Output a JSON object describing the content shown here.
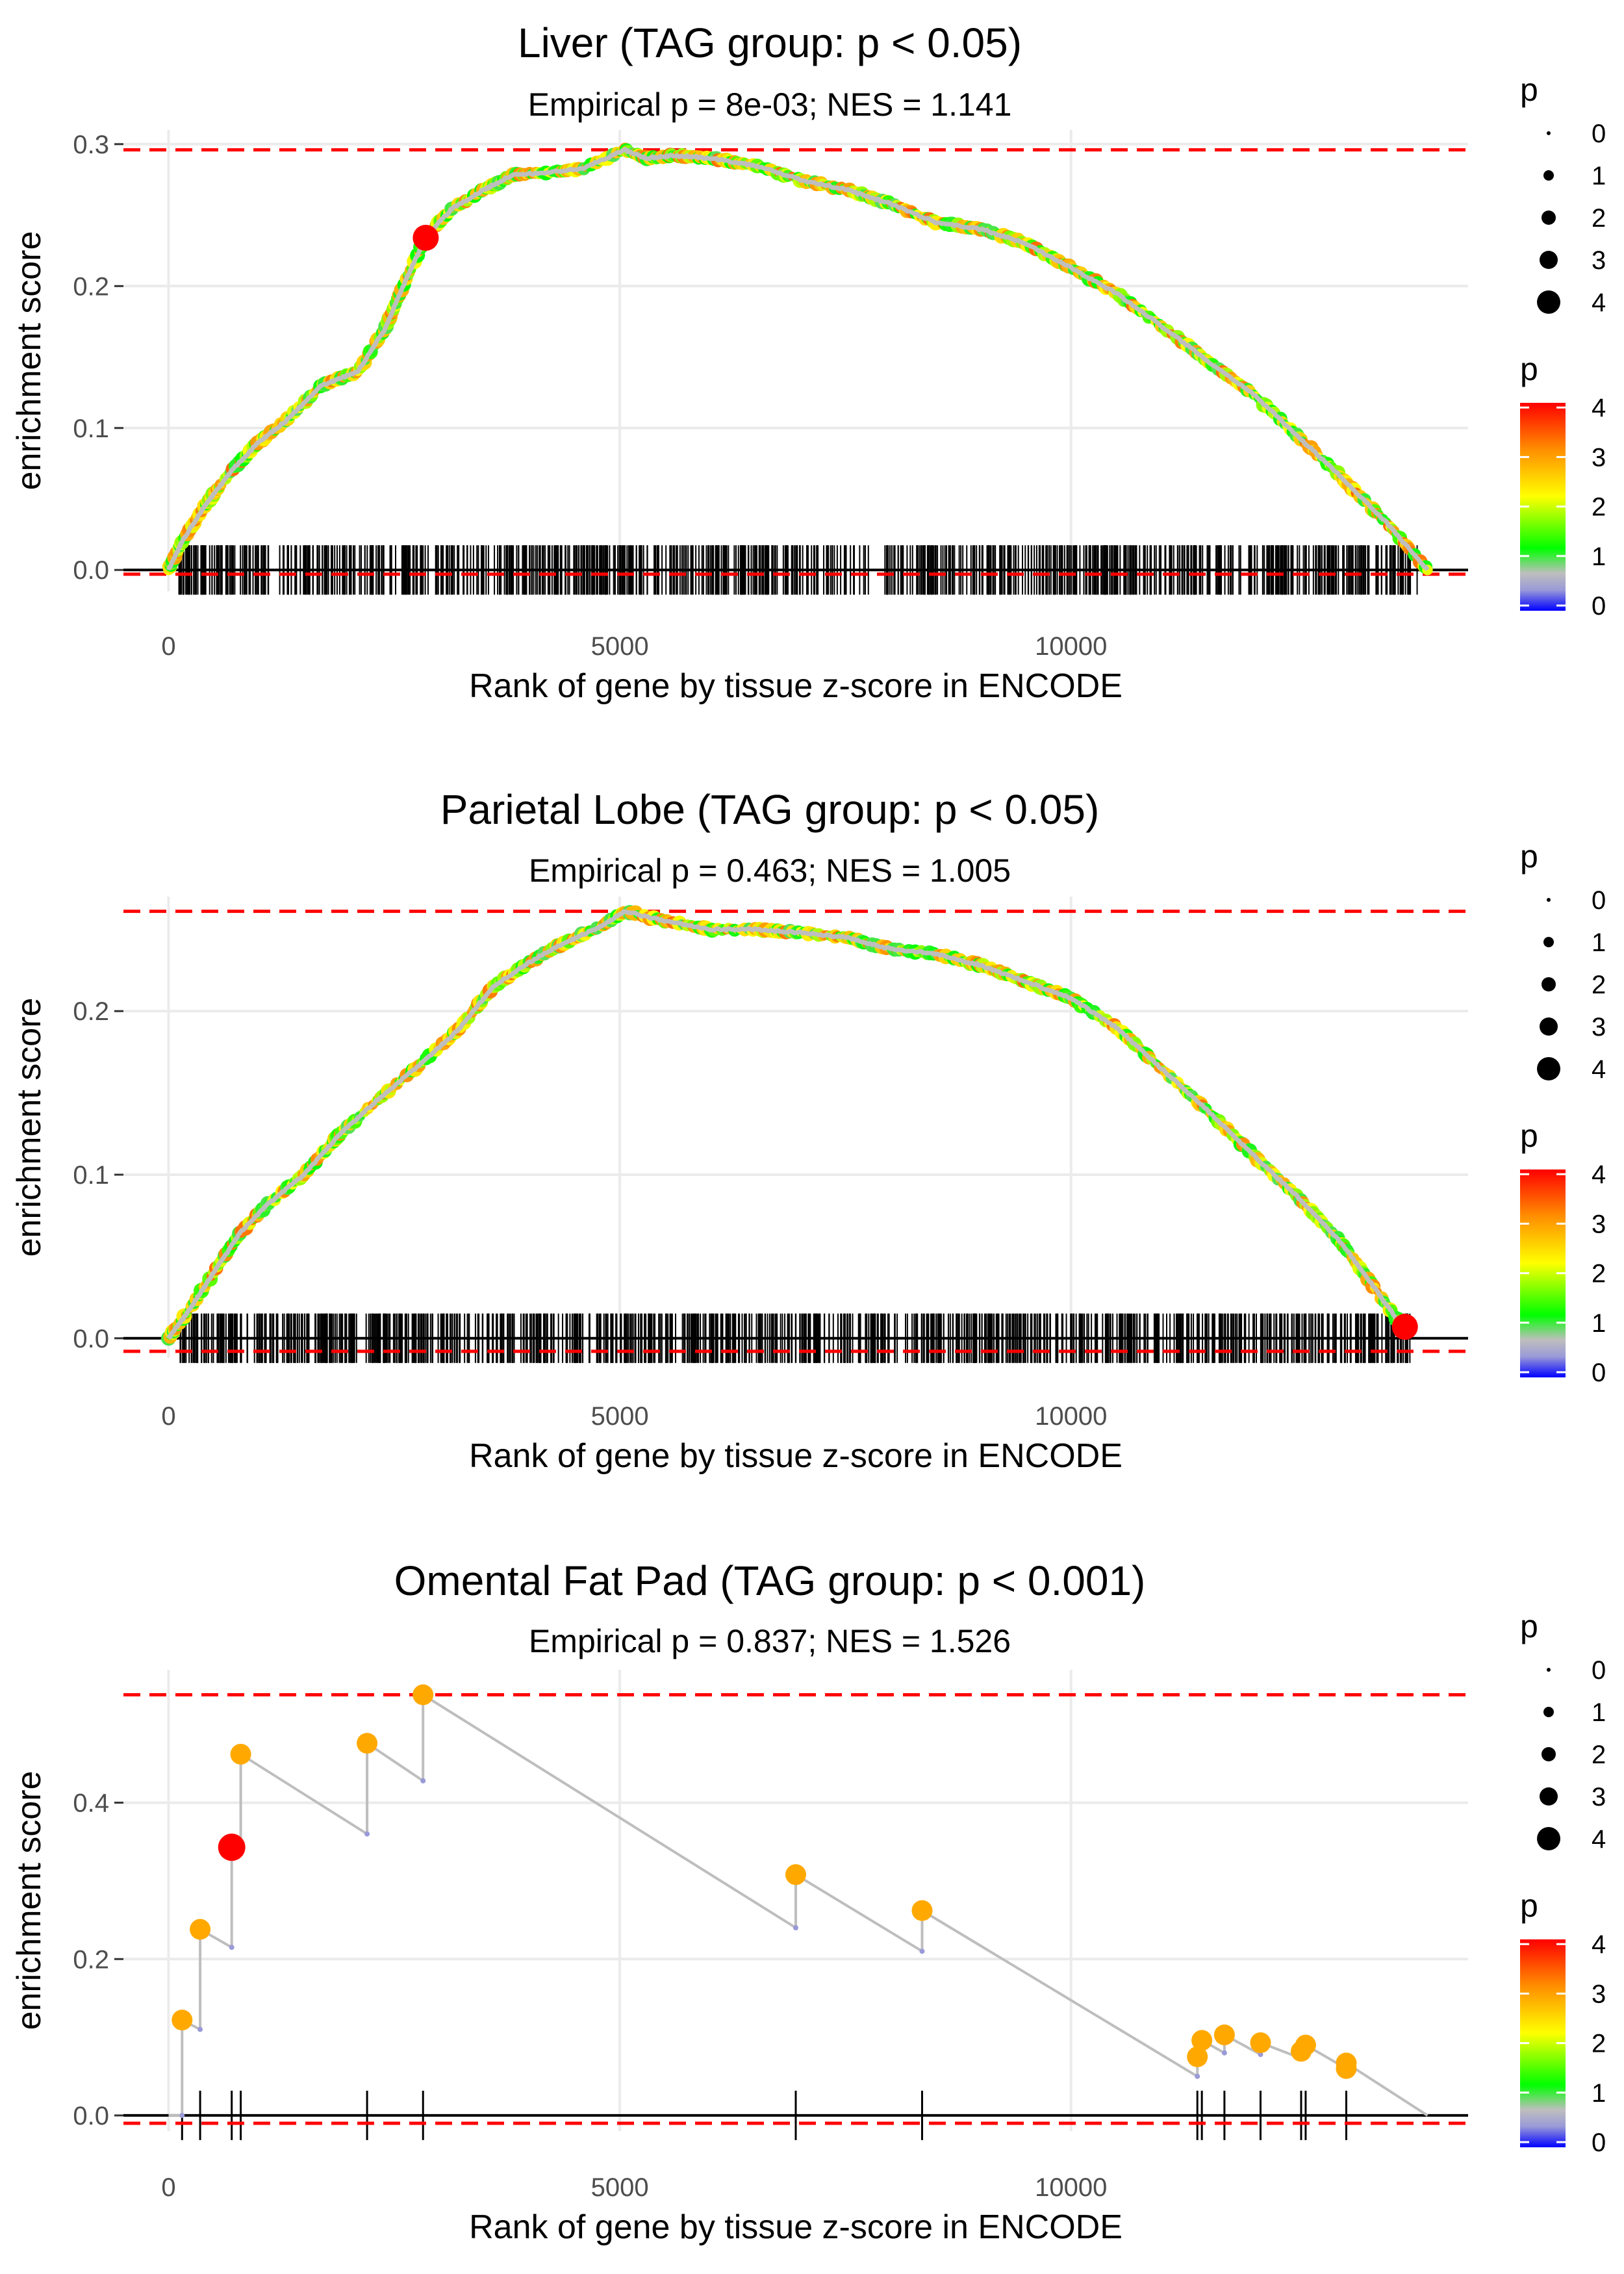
{
  "chart_data": [
    {
      "type": "line",
      "title": "Liver (TAG group: p < 0.05)",
      "subtitle": "Empirical p = 8e-03; NES = 1.141",
      "xlabel": "Rank of gene by tissue z-score in ENCODE",
      "ylabel": "enrichment score",
      "xlim": [
        -500,
        14400
      ],
      "ylim": [
        -0.015,
        0.31
      ],
      "x_ticks": [
        0,
        5000,
        10000
      ],
      "x_tick_labels": [
        "0",
        "5000",
        "10000"
      ],
      "y_ticks": [
        0,
        0.1,
        0.2,
        0.3
      ],
      "y_tick_labels": [
        "0.0",
        "0.1",
        "0.2",
        "0.3"
      ],
      "ref_lines": {
        "max": 0.296,
        "min": -0.003
      },
      "curve": [
        [
          0,
          0
        ],
        [
          150,
          0.02
        ],
        [
          400,
          0.045
        ],
        [
          700,
          0.07
        ],
        [
          1000,
          0.09
        ],
        [
          1300,
          0.105
        ],
        [
          1700,
          0.13
        ],
        [
          2100,
          0.14
        ],
        [
          2400,
          0.17
        ],
        [
          2600,
          0.2
        ],
        [
          2850,
          0.235
        ],
        [
          3150,
          0.255
        ],
        [
          3500,
          0.268
        ],
        [
          3800,
          0.278
        ],
        [
          4200,
          0.28
        ],
        [
          4600,
          0.283
        ],
        [
          5050,
          0.296
        ],
        [
          5300,
          0.29
        ],
        [
          5600,
          0.292
        ],
        [
          6000,
          0.29
        ],
        [
          6500,
          0.285
        ],
        [
          7000,
          0.275
        ],
        [
          7500,
          0.268
        ],
        [
          8000,
          0.258
        ],
        [
          8500,
          0.245
        ],
        [
          9000,
          0.24
        ],
        [
          9500,
          0.23
        ],
        [
          10000,
          0.213
        ],
        [
          10500,
          0.195
        ],
        [
          11000,
          0.172
        ],
        [
          11500,
          0.148
        ],
        [
          12000,
          0.125
        ],
        [
          12500,
          0.095
        ],
        [
          13000,
          0.065
        ],
        [
          13500,
          0.033
        ],
        [
          13950,
          0.0
        ]
      ],
      "highlight_points": [
        {
          "x": 2850,
          "y": 0.234,
          "p": 4.2
        }
      ],
      "rug": "dense",
      "rug_range": [
        100,
        13850
      ],
      "rug_count": 900
    },
    {
      "type": "line",
      "title": "Parietal Lobe (TAG group: p < 0.05)",
      "subtitle": "Empirical p = 0.463; NES = 1.005",
      "xlabel": "Rank of gene by tissue z-score in ENCODE",
      "ylabel": "enrichment score",
      "xlim": [
        -500,
        14400
      ],
      "ylim": [
        -0.012,
        0.27
      ],
      "x_ticks": [
        0,
        5000,
        10000
      ],
      "x_tick_labels": [
        "0",
        "5000",
        "10000"
      ],
      "y_ticks": [
        0,
        0.1,
        0.2
      ],
      "y_tick_labels": [
        "0.0",
        "0.1",
        "0.2"
      ],
      "ref_lines": {
        "max": 0.261,
        "min": -0.008
      },
      "curve": [
        [
          0,
          0
        ],
        [
          200,
          0.015
        ],
        [
          500,
          0.04
        ],
        [
          800,
          0.065
        ],
        [
          1100,
          0.082
        ],
        [
          1500,
          0.1
        ],
        [
          1900,
          0.125
        ],
        [
          2300,
          0.145
        ],
        [
          2800,
          0.168
        ],
        [
          3200,
          0.188
        ],
        [
          3600,
          0.215
        ],
        [
          4000,
          0.23
        ],
        [
          4400,
          0.242
        ],
        [
          4800,
          0.252
        ],
        [
          5050,
          0.261
        ],
        [
          5500,
          0.255
        ],
        [
          6000,
          0.25
        ],
        [
          6500,
          0.25
        ],
        [
          7000,
          0.248
        ],
        [
          7500,
          0.245
        ],
        [
          8000,
          0.238
        ],
        [
          8500,
          0.235
        ],
        [
          9000,
          0.228
        ],
        [
          9500,
          0.218
        ],
        [
          10000,
          0.208
        ],
        [
          10500,
          0.19
        ],
        [
          11000,
          0.165
        ],
        [
          11500,
          0.14
        ],
        [
          12000,
          0.113
        ],
        [
          12500,
          0.087
        ],
        [
          13000,
          0.058
        ],
        [
          13400,
          0.028
        ],
        [
          13700,
          0.005
        ]
      ],
      "highlight_points": [
        {
          "x": 13700,
          "y": 0.007,
          "p": 4.2
        }
      ],
      "rug": "dense",
      "rug_range": [
        100,
        13800
      ],
      "rug_count": 950
    },
    {
      "type": "line",
      "title": "Omental Fat Pad (TAG group: p < 0.001)",
      "subtitle": "Empirical p = 0.837; NES = 1.526",
      "xlabel": "Rank of gene by tissue z-score in ENCODE",
      "ylabel": "enrichment score",
      "xlim": [
        -500,
        14400
      ],
      "ylim": [
        -0.02,
        0.57
      ],
      "x_ticks": [
        0,
        5000,
        10000
      ],
      "x_tick_labels": [
        "0",
        "5000",
        "10000"
      ],
      "y_ticks": [
        0,
        0.2,
        0.4
      ],
      "y_tick_labels": [
        "0.0",
        "0.2",
        "0.4"
      ],
      "ref_lines": {
        "max": 0.538,
        "min": -0.01
      },
      "curve": [
        [
          0,
          0
        ],
        [
          150,
          0
        ],
        [
          150,
          0.122
        ],
        [
          350,
          0.11
        ],
        [
          350,
          0.238
        ],
        [
          700,
          0.215
        ],
        [
          700,
          0.343
        ],
        [
          800,
          0.335
        ],
        [
          800,
          0.462
        ],
        [
          2200,
          0.36
        ],
        [
          2200,
          0.476
        ],
        [
          2820,
          0.428
        ],
        [
          2820,
          0.538
        ],
        [
          6950,
          0.24
        ],
        [
          6950,
          0.308
        ],
        [
          8350,
          0.21
        ],
        [
          8350,
          0.262
        ],
        [
          11400,
          0.05
        ],
        [
          11400,
          0.075
        ],
        [
          11450,
          0.075
        ],
        [
          11450,
          0.096
        ],
        [
          11700,
          0.08
        ],
        [
          11700,
          0.103
        ],
        [
          12100,
          0.078
        ],
        [
          12100,
          0.093
        ],
        [
          12550,
          0.073
        ],
        [
          12550,
          0.082
        ],
        [
          12600,
          0.082
        ],
        [
          12600,
          0.09
        ],
        [
          13050,
          0.06
        ],
        [
          13050,
          0.067
        ],
        [
          13950,
          0
        ]
      ],
      "points": [
        {
          "x": 150,
          "y": 0.122
        },
        {
          "x": 350,
          "y": 0.238
        },
        {
          "x": 700,
          "y": 0.343,
          "p": 4.2
        },
        {
          "x": 800,
          "y": 0.462
        },
        {
          "x": 2200,
          "y": 0.476
        },
        {
          "x": 2820,
          "y": 0.538
        },
        {
          "x": 6950,
          "y": 0.308
        },
        {
          "x": 8350,
          "y": 0.262
        },
        {
          "x": 11400,
          "y": 0.075
        },
        {
          "x": 11450,
          "y": 0.096
        },
        {
          "x": 11700,
          "y": 0.103
        },
        {
          "x": 12100,
          "y": 0.093
        },
        {
          "x": 12550,
          "y": 0.082
        },
        {
          "x": 12600,
          "y": 0.09
        },
        {
          "x": 13050,
          "y": 0.067
        },
        {
          "x": 13050,
          "y": 0.06
        }
      ],
      "rug": "sparse",
      "rug_positions": [
        150,
        350,
        700,
        800,
        2200,
        2820,
        6950,
        8350,
        11400,
        11450,
        11700,
        12100,
        12550,
        12600,
        13050
      ]
    }
  ],
  "legends": {
    "size_title": "p",
    "size_labels": [
      "0",
      "1",
      "2",
      "3",
      "4"
    ],
    "color_title": "p",
    "color_labels": [
      "4",
      "3",
      "2",
      "1",
      "0"
    ],
    "color_scale": [
      "#ff0000",
      "#ff8c00",
      "#ffff00",
      "#00ff00",
      "#00ff00",
      "#bebebe",
      "#0000ff"
    ]
  },
  "colors": {
    "ref_line": "#ff0000",
    "grid": "#ebebeb",
    "curve_stroke": "#bebebe",
    "rug": "#000000"
  }
}
